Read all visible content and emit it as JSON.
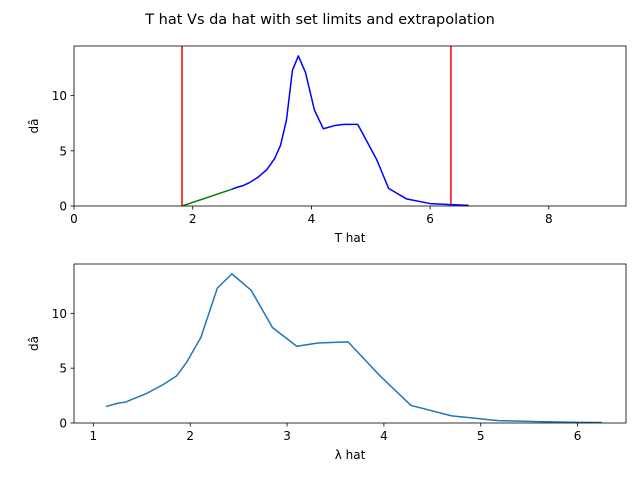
{
  "figure": {
    "title": "T hat Vs da hat with set limits and extrapolation"
  },
  "chart_data": [
    {
      "type": "line",
      "xlabel": "T hat",
      "ylabel": "dâ",
      "xlim": [
        0,
        9.3
      ],
      "ylim": [
        0,
        14.5
      ],
      "xticks": [
        0,
        2,
        4,
        6,
        8
      ],
      "yticks": [
        0,
        5,
        10
      ],
      "grid": false,
      "series": [
        {
          "color": "#0000ff",
          "x": [
            2.65,
            2.75,
            2.85,
            2.95,
            3.1,
            3.25,
            3.38,
            3.48,
            3.58,
            3.68,
            3.78,
            3.9,
            4.05,
            4.2,
            4.4,
            4.55,
            4.78,
            5.1,
            5.3,
            5.6,
            6.0,
            6.35,
            6.65
          ],
          "y": [
            1.5,
            1.7,
            1.85,
            2.1,
            2.6,
            3.3,
            4.3,
            5.5,
            7.8,
            12.3,
            13.6,
            12.1,
            8.7,
            7.0,
            7.3,
            7.4,
            7.4,
            4.2,
            1.6,
            0.65,
            0.22,
            0.12,
            0.06
          ]
        },
        {
          "color": "#008000",
          "x": [
            1.82,
            2.65
          ],
          "y": [
            0.0,
            1.5
          ]
        }
      ],
      "vlines": [
        {
          "x": 1.82,
          "color": "#ff0000"
        },
        {
          "x": 6.35,
          "color": "#ff0000"
        }
      ]
    },
    {
      "type": "line",
      "xlabel": "λ hat",
      "ylabel": "dâ",
      "xlim": [
        0.8,
        6.5
      ],
      "ylim": [
        0,
        14.5
      ],
      "xticks": [
        1,
        2,
        3,
        4,
        5,
        6
      ],
      "yticks": [
        0,
        5,
        10
      ],
      "grid": false,
      "series": [
        {
          "color": "#1f77b4",
          "x": [
            1.13,
            1.25,
            1.33,
            1.55,
            1.72,
            1.86,
            1.96,
            2.11,
            2.28,
            2.43,
            2.63,
            2.85,
            3.1,
            3.32,
            3.63,
            3.96,
            4.28,
            4.7,
            5.18,
            5.6,
            6.0,
            6.25
          ],
          "y": [
            1.5,
            1.8,
            1.9,
            2.7,
            3.5,
            4.3,
            5.5,
            7.8,
            12.3,
            13.6,
            12.1,
            8.7,
            7.0,
            7.3,
            7.4,
            4.3,
            1.6,
            0.65,
            0.22,
            0.12,
            0.06,
            0.04
          ]
        }
      ],
      "vlines": []
    }
  ]
}
